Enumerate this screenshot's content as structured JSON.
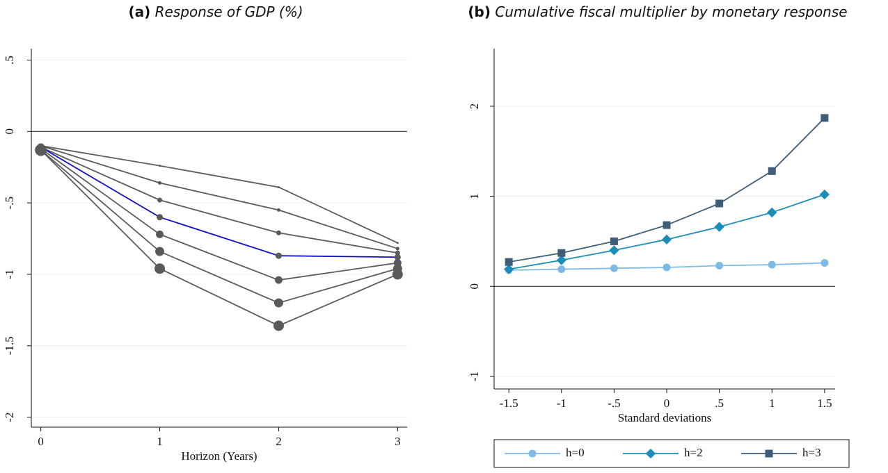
{
  "chart_data": [
    {
      "type": "line",
      "label": "(a)",
      "title": "Response of GDP (%)",
      "xlabel": "Horizon (Years)",
      "x": [
        0,
        1,
        2,
        3
      ],
      "series": [
        {
          "color": "#5a5a5a",
          "marker": "circle",
          "values": [
            -0.1,
            -0.24,
            -0.39,
            -0.78
          ]
        },
        {
          "color": "#5a5a5a",
          "marker": "circle",
          "values": [
            -0.1,
            -0.36,
            -0.55,
            -0.82
          ]
        },
        {
          "color": "#5a5a5a",
          "marker": "circle",
          "values": [
            -0.11,
            -0.48,
            -0.71,
            -0.85
          ]
        },
        {
          "color": "#1010c8",
          "marker": "circle",
          "values": [
            -0.11,
            -0.6,
            -0.87,
            -0.88
          ]
        },
        {
          "color": "#5a5a5a",
          "marker": "circle",
          "values": [
            -0.12,
            -0.72,
            -1.04,
            -0.92
          ]
        },
        {
          "color": "#5a5a5a",
          "marker": "circle",
          "values": [
            -0.13,
            -0.84,
            -1.2,
            -0.96
          ]
        },
        {
          "color": "#5a5a5a",
          "marker": "circle",
          "values": [
            -0.13,
            -0.96,
            -1.36,
            -1.0
          ]
        }
      ],
      "xlim": [
        -0.08,
        3.08
      ],
      "xticks": [
        0,
        1,
        2,
        3
      ],
      "ylim": [
        -2.07,
        0.58
      ],
      "yticks": [
        {
          "value": 0.5,
          "label": ".5"
        },
        0,
        {
          "value": -0.5,
          "label": "-.5"
        },
        -1,
        -1.5,
        -2
      ],
      "grid": true,
      "zero_line": true
    },
    {
      "type": "line",
      "label": "(b)",
      "title": "Cumulative fiscal multiplier by monetary response",
      "xlabel": "Standard deviations",
      "x": [
        -1.5,
        -1,
        -0.5,
        0,
        0.5,
        1,
        1.5
      ],
      "series": [
        {
          "name": "h=0",
          "color": "#7dbbe6",
          "marker": "circle",
          "values": [
            0.18,
            0.19,
            0.2,
            0.21,
            0.23,
            0.24,
            0.26
          ]
        },
        {
          "name": "h=2",
          "color": "#1a8db8",
          "marker": "diamond",
          "values": [
            0.19,
            0.29,
            0.4,
            0.52,
            0.66,
            0.82,
            1.02
          ]
        },
        {
          "name": "h=3",
          "color": "#3d5d79",
          "marker": "square",
          "values": [
            0.27,
            0.37,
            0.5,
            0.68,
            0.92,
            1.28,
            1.87
          ]
        }
      ],
      "xlim": [
        -1.64,
        1.6
      ],
      "xticks": [
        -1.5,
        -1,
        {
          "value": -0.5,
          "label": "-.5"
        },
        0,
        {
          "value": 0.5,
          "label": ".5"
        },
        1,
        1.5
      ],
      "ylim": [
        -1.14,
        2.64
      ],
      "yticks": [
        -1,
        0,
        1,
        2
      ],
      "grid": true,
      "zero_line": true,
      "legend": "bottom"
    }
  ]
}
